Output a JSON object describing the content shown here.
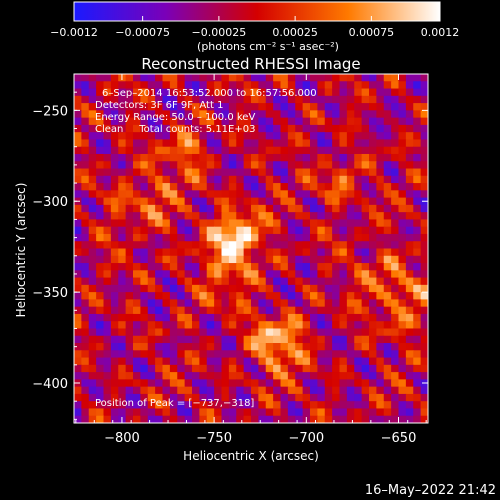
{
  "chart_data": {
    "type": "heatmap",
    "title": "Reconstructed RHESSI Image",
    "xlabel": "Heliocentric X (arcsec)",
    "ylabel": "Heliocentric Y (arcsec)",
    "xlim": [
      -826,
      -634
    ],
    "ylim": [
      -422,
      -230
    ],
    "x_ticks": [
      {
        "value": -800,
        "label": "−800"
      },
      {
        "value": -750,
        "label": "−750"
      },
      {
        "value": -700,
        "label": "−700"
      },
      {
        "value": -650,
        "label": "−650"
      }
    ],
    "y_ticks": [
      {
        "value": -250,
        "label": "−250"
      },
      {
        "value": -300,
        "label": "−300"
      },
      {
        "value": -350,
        "label": "−350"
      },
      {
        "value": -400,
        "label": "−400"
      }
    ],
    "colorbar": {
      "range": [
        -0.0012,
        0.0012
      ],
      "tick_labels": [
        "−0.0012",
        "−0.00075",
        "−0.00025",
        "0.00025",
        "0.00075",
        "0.0012"
      ],
      "tick_values": [
        -0.0012,
        -0.00075,
        -0.00025,
        0.00025,
        0.00075,
        0.0012
      ],
      "unit": "(photons cm⁻² s⁻¹ asec⁻²)",
      "colors": [
        "#1a1aff",
        "#7a00b8",
        "#d40000",
        "#ff7a00",
        "#ffffff"
      ]
    },
    "annotations": [
      "6–Sep–2014 16:53:52.000 to 16:57:56.000",
      "Detectors: 3F 6F 9F, Att 1",
      "Energy Range: 50.0 – 100.0 keV",
      "Clean     Total counts: 5.11E+03"
    ],
    "peak_label": "Position of Peak = [−737,−318]",
    "peak": {
      "x": -737,
      "y": -318
    },
    "sources": [
      {
        "x": -737,
        "y": -318,
        "amp": 1.0,
        "sigma": 9
      },
      {
        "x": -716,
        "y": -378,
        "amp": 0.85,
        "sigma": 10
      },
      {
        "x": -765,
        "y": -274,
        "amp": 0.45,
        "sigma": 9
      },
      {
        "x": -680,
        "y": -288,
        "amp": 0.45,
        "sigma": 9
      },
      {
        "x": -650,
        "y": -350,
        "amp": 0.55,
        "sigma": 14
      },
      {
        "x": -790,
        "y": -300,
        "amp": 0.35,
        "sigma": 14
      },
      {
        "x": -745,
        "y": -340,
        "amp": 0.4,
        "sigma": 12
      }
    ]
  },
  "footer_timestamp": "16–May–2022 21:42"
}
